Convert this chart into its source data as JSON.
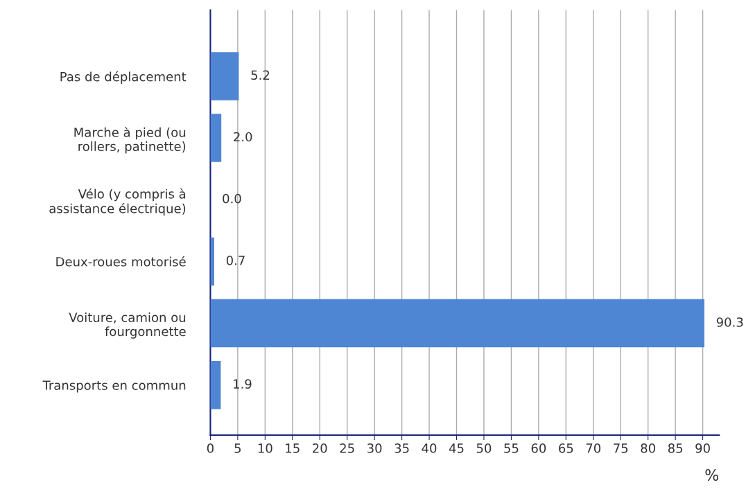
{
  "chart_data": {
    "type": "bar",
    "orientation": "horizontal",
    "categories": [
      "Pas de déplacement",
      "Marche à pied (ou\nrollers, patinette)",
      "Vélo (y compris à\nassistance électrique)",
      "Deux-roues motorisé",
      "Voiture, camion ou\nfourgonnette",
      "Transports en commun"
    ],
    "values": [
      5.2,
      2.0,
      0.0,
      0.7,
      90.3,
      1.9
    ],
    "value_labels": [
      "5.2",
      "2.0",
      "0.0",
      "0.7",
      "90.3",
      "1.9"
    ],
    "color": "#4f86d3",
    "xlabel": "%",
    "xlim": [
      0,
      93
    ],
    "xticks": [
      0,
      5,
      10,
      15,
      20,
      25,
      30,
      35,
      40,
      45,
      50,
      55,
      60,
      65,
      70,
      75,
      80,
      85,
      90
    ],
    "grid": "x"
  }
}
